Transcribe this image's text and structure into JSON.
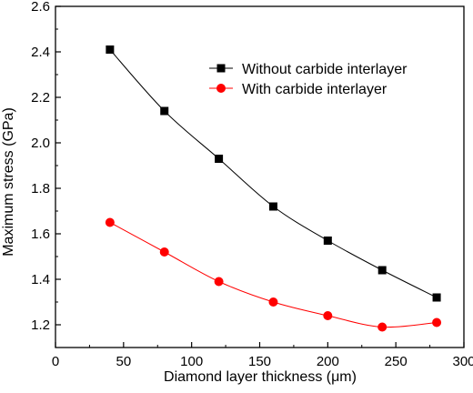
{
  "chart_data": {
    "type": "line",
    "title": "",
    "xlabel": "Diamond layer thickness (μm)",
    "ylabel": "Maximum stress (GPa)",
    "xlim": [
      0,
      300
    ],
    "ylim": [
      1.1,
      2.6
    ],
    "x_ticks": [
      0,
      50,
      100,
      150,
      200,
      250,
      300
    ],
    "y_ticks": [
      1.2,
      1.4,
      1.6,
      1.8,
      2.0,
      2.2,
      2.4,
      2.6
    ],
    "x_tick_labels": [
      "0",
      "50",
      "100",
      "150",
      "200",
      "250",
      "300"
    ],
    "y_tick_labels": [
      "1.2",
      "1.4",
      "1.6",
      "1.8",
      "2.0",
      "2.2",
      "2.4",
      "2.6"
    ],
    "grid": false,
    "legend_position": "top-right",
    "x": [
      40,
      80,
      120,
      160,
      200,
      240,
      280
    ],
    "series": [
      {
        "name": "Without carbide interlayer",
        "marker": "square",
        "color": "#000000",
        "values": [
          2.41,
          2.14,
          1.93,
          1.72,
          1.57,
          1.44,
          1.32
        ]
      },
      {
        "name": "With carbide interlayer",
        "marker": "circle",
        "color": "#ff0000",
        "values": [
          1.65,
          1.52,
          1.39,
          1.3,
          1.24,
          1.19,
          1.21
        ]
      }
    ]
  }
}
